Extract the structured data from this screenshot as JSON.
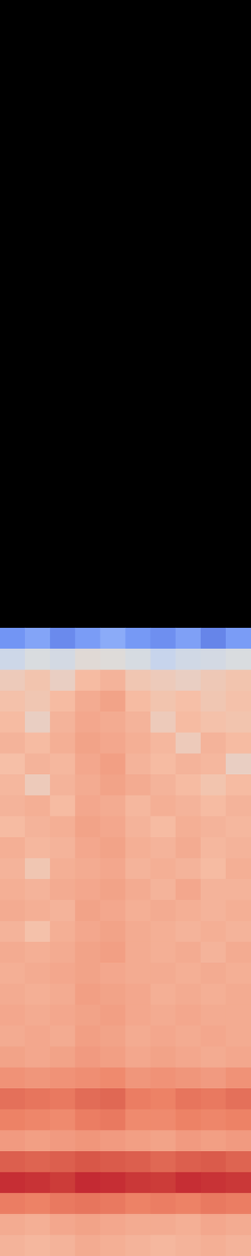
{
  "chart_data": {
    "type": "heatmap",
    "tick_labels": false,
    "grid": false,
    "zlim": [
      0,
      100
    ],
    "cells": [
      [
        14,
        18,
        12,
        16,
        20,
        15,
        13,
        17,
        11,
        16
      ],
      [
        38,
        42,
        40,
        45,
        44,
        41,
        36,
        39,
        40,
        42
      ],
      [
        52,
        55,
        50,
        58,
        60,
        54,
        52,
        50,
        53,
        55
      ],
      [
        56,
        54,
        58,
        62,
        64,
        58,
        55,
        57,
        54,
        56
      ],
      [
        58,
        50,
        60,
        63,
        62,
        60,
        52,
        58,
        56,
        55
      ],
      [
        60,
        58,
        61,
        64,
        63,
        61,
        59,
        52,
        60,
        58
      ],
      [
        57,
        60,
        59,
        63,
        65,
        60,
        58,
        60,
        59,
        50
      ],
      [
        59,
        52,
        60,
        62,
        64,
        62,
        60,
        58,
        55,
        58
      ],
      [
        60,
        61,
        58,
        63,
        62,
        59,
        61,
        60,
        58,
        60
      ],
      [
        58,
        60,
        61,
        64,
        63,
        60,
        58,
        61,
        60,
        59
      ],
      [
        61,
        59,
        60,
        63,
        64,
        61,
        60,
        62,
        59,
        60
      ],
      [
        60,
        54,
        61,
        62,
        63,
        60,
        61,
        60,
        58,
        61
      ],
      [
        61,
        60,
        62,
        63,
        64,
        62,
        60,
        63,
        60,
        60
      ],
      [
        62,
        61,
        60,
        64,
        63,
        61,
        62,
        61,
        60,
        61
      ],
      [
        60,
        56,
        61,
        63,
        64,
        62,
        61,
        60,
        61,
        60
      ],
      [
        62,
        61,
        62,
        64,
        65,
        62,
        61,
        62,
        60,
        62
      ],
      [
        61,
        62,
        63,
        64,
        63,
        62,
        62,
        61,
        62,
        61
      ],
      [
        62,
        61,
        62,
        65,
        64,
        63,
        61,
        62,
        61,
        62
      ],
      [
        63,
        62,
        63,
        64,
        65,
        63,
        62,
        63,
        62,
        62
      ],
      [
        62,
        63,
        62,
        65,
        64,
        62,
        63,
        62,
        63,
        62
      ],
      [
        64,
        63,
        64,
        66,
        65,
        63,
        64,
        63,
        62,
        63
      ],
      [
        68,
        67,
        68,
        69,
        70,
        67,
        68,
        67,
        66,
        68
      ],
      [
        76,
        75,
        74,
        77,
        78,
        73,
        72,
        75,
        74,
        76
      ],
      [
        72,
        71,
        70,
        73,
        74,
        70,
        70,
        72,
        71,
        72
      ],
      [
        66,
        65,
        66,
        67,
        66,
        65,
        64,
        66,
        65,
        66
      ],
      [
        80,
        79,
        80,
        82,
        81,
        80,
        78,
        80,
        81,
        79
      ],
      [
        91,
        90,
        88,
        92,
        91,
        89,
        88,
        91,
        90,
        89
      ],
      [
        73,
        72,
        74,
        75,
        74,
        72,
        73,
        72,
        74,
        73
      ],
      [
        62,
        61,
        63,
        64,
        63,
        62,
        62,
        61,
        63,
        62
      ],
      [
        60,
        59,
        60,
        62,
        61,
        60,
        59,
        60,
        61,
        60
      ]
    ]
  }
}
